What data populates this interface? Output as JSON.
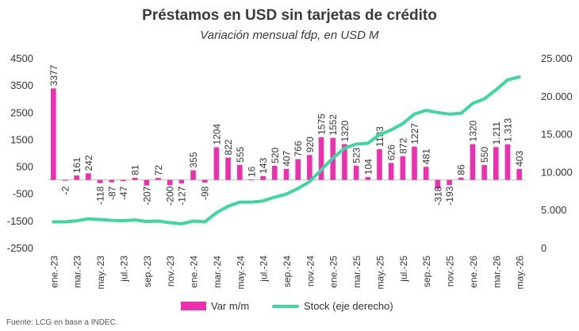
{
  "colors": {
    "bars": "#ee2fb0",
    "line": "#3dd8a0",
    "text": "#333333",
    "axis": "#bfbfbf"
  },
  "source": "Fuente: LCG en base a INDEC.",
  "chart_data": {
    "type": "bar",
    "title": "Préstamos en USD sin tarjetas de crédito",
    "subtitle": "Variación mensual fdp, en USD M",
    "categories": [
      "ene.-23",
      "feb.-23",
      "mar.-23",
      "abr.-23",
      "may.-23",
      "jun.-23",
      "jul.-23",
      "ago.-23",
      "sep.-23",
      "oct.-23",
      "nov.-23",
      "dic.-23",
      "ene.-24",
      "feb.-24",
      "mar.-24",
      "abr.-24",
      "may.-24",
      "jun.-24",
      "jul.-24",
      "ago.-24",
      "sep.-24",
      "oct.-24",
      "nov.-24",
      "dic.-24",
      "ene.-25",
      "feb.-25",
      "mar.-25",
      "abr.-25",
      "may.-25",
      "jun.-25",
      "jul.-25",
      "ago.-25",
      "sep.-25",
      "oct.-25",
      "nov.-25",
      "dic.-25",
      "ene.-26",
      "feb.-26",
      "mar.-26",
      "abr.-26",
      "may.-26"
    ],
    "x_tick_labels": [
      "ene.-23",
      "mar.-23",
      "may.-23",
      "jul.-23",
      "sep.-23",
      "nov.-23",
      "ene.-24",
      "mar.-24",
      "may.-24",
      "jul.-24",
      "sep.-24",
      "nov.-24",
      "ene.-25",
      "mar.-25",
      "may.-25",
      "jul.-25",
      "sep.-25",
      "nov.-25",
      "ene.-26",
      "mar.-26",
      "may.-26"
    ],
    "series": [
      {
        "name": "Var m/m",
        "type": "bar",
        "axis": "left",
        "values": [
          3377,
          -2,
          161,
          242,
          -118,
          -87,
          -47,
          81,
          -207,
          72,
          -200,
          -127,
          355,
          -98,
          1204,
          822,
          555,
          16,
          143,
          520,
          407,
          766,
          920,
          1575,
          1552,
          1320,
          523,
          104,
          1133,
          626,
          872,
          1227,
          481,
          -318,
          -193,
          86,
          1320,
          550,
          1211,
          1313,
          403
        ],
        "labels": [
          "3377",
          "-2",
          "161",
          "242",
          "-118",
          "-87",
          "-47",
          "81",
          "-207",
          "72",
          "-200",
          "-127",
          "355",
          "-98",
          "1204",
          "822",
          "555",
          "16",
          "143",
          "520",
          "407",
          "766",
          "920",
          "1575",
          "1552",
          "1320",
          "523",
          "104",
          "1133",
          "626",
          "872",
          "1227",
          "481",
          "-318",
          "-193",
          "86",
          "1320",
          "550",
          "1.211",
          "1.313",
          "403"
        ]
      },
      {
        "name": "Stock (eje derecho)",
        "type": "line",
        "axis": "right",
        "values": [
          3400,
          3400,
          3550,
          3800,
          3700,
          3600,
          3550,
          3650,
          3450,
          3500,
          3300,
          3150,
          3500,
          3400,
          4600,
          5450,
          6000,
          6000,
          6150,
          6650,
          7050,
          7800,
          8700,
          10250,
          11800,
          13100,
          13650,
          13750,
          14900,
          15500,
          16350,
          17600,
          18100,
          17800,
          17600,
          17700,
          19000,
          19600,
          20800,
          22100,
          22500
        ]
      }
    ],
    "ylim": [
      -2500,
      4500
    ],
    "yticks": [
      "4500",
      "3500",
      "2500",
      "1500",
      "500",
      "-500",
      "-1500",
      "-2500"
    ],
    "y2lim": [
      0,
      25000
    ],
    "y2ticks": [
      "25.000",
      "20.000",
      "15.000",
      "10.000",
      "5.000",
      "0"
    ],
    "grid": false,
    "legend_position": "bottom"
  }
}
